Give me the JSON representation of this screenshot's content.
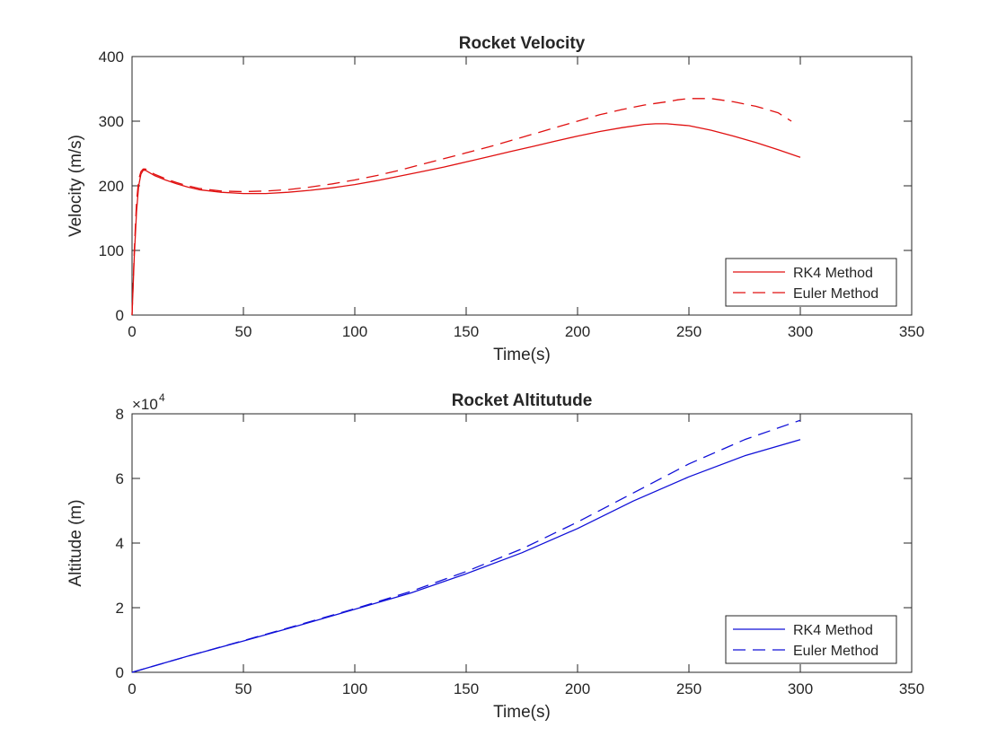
{
  "chart_data": [
    {
      "type": "line",
      "title": "Rocket Velocity",
      "xlabel": "Time(s)",
      "ylabel": "Velocity (m/s)",
      "xlim": [
        0,
        350
      ],
      "ylim": [
        0,
        400
      ],
      "xticks": [
        "0",
        "50",
        "100",
        "150",
        "200",
        "250",
        "300",
        "350"
      ],
      "yticks": [
        "0",
        "100",
        "200",
        "300",
        "400"
      ],
      "exponent_label": "",
      "grid": false,
      "legend_position": "bottom-right",
      "color": "#e01010",
      "series": [
        {
          "name": "RK4 Method",
          "style": "solid",
          "x": [
            0,
            1,
            2,
            3,
            4,
            5,
            6,
            8,
            10,
            15,
            20,
            25,
            30,
            40,
            50,
            60,
            70,
            80,
            90,
            100,
            110,
            120,
            130,
            140,
            150,
            160,
            170,
            180,
            190,
            200,
            210,
            220,
            230,
            235,
            240,
            250,
            260,
            270,
            280,
            290,
            300
          ],
          "y": [
            0,
            90,
            160,
            200,
            218,
            224,
            224,
            220,
            216,
            209,
            203,
            198,
            194,
            190,
            188,
            188,
            190,
            193,
            197,
            202,
            208,
            215,
            222,
            229,
            237,
            245,
            253,
            261,
            269,
            277,
            284,
            290,
            295,
            296,
            296,
            293,
            286,
            277,
            267,
            256,
            244
          ]
        },
        {
          "name": "Euler Method",
          "style": "dashed",
          "x": [
            0,
            1,
            2,
            3,
            4,
            5,
            6,
            8,
            10,
            15,
            20,
            25,
            30,
            40,
            50,
            60,
            70,
            80,
            90,
            100,
            110,
            120,
            130,
            140,
            150,
            160,
            170,
            180,
            190,
            200,
            210,
            220,
            230,
            240,
            245,
            250,
            260,
            270,
            280,
            290,
            296
          ],
          "y": [
            0,
            100,
            175,
            210,
            222,
            226,
            226,
            222,
            218,
            211,
            205,
            200,
            196,
            192,
            191,
            192,
            194,
            198,
            203,
            209,
            216,
            224,
            233,
            242,
            251,
            260,
            270,
            280,
            290,
            300,
            310,
            318,
            325,
            330,
            333,
            335,
            335,
            330,
            323,
            313,
            300
          ]
        }
      ]
    },
    {
      "type": "line",
      "title": "Rocket Altitutude",
      "xlabel": "Time(s)",
      "ylabel": "Altitude (m)",
      "xlim": [
        0,
        350
      ],
      "ylim": [
        0,
        8
      ],
      "xticks": [
        "0",
        "50",
        "100",
        "150",
        "200",
        "250",
        "300",
        "350"
      ],
      "yticks": [
        "0",
        "2",
        "4",
        "6",
        "8"
      ],
      "exponent_label": "×10",
      "exponent_power": "4",
      "grid": false,
      "legend_position": "bottom-right",
      "color": "#1010d8",
      "series": [
        {
          "name": "RK4 Method",
          "style": "solid",
          "x": [
            0,
            25,
            50,
            75,
            100,
            125,
            150,
            175,
            200,
            225,
            250,
            275,
            300
          ],
          "y": [
            0,
            0.5,
            0.97,
            1.45,
            1.95,
            2.45,
            3.05,
            3.7,
            4.45,
            5.3,
            6.05,
            6.7,
            7.2
          ]
        },
        {
          "name": "Euler Method",
          "style": "dashed",
          "x": [
            0,
            25,
            50,
            75,
            100,
            125,
            150,
            175,
            200,
            225,
            250,
            275,
            300
          ],
          "y": [
            0,
            0.5,
            0.98,
            1.47,
            1.97,
            2.5,
            3.12,
            3.82,
            4.65,
            5.55,
            6.45,
            7.2,
            7.8
          ]
        }
      ]
    }
  ]
}
